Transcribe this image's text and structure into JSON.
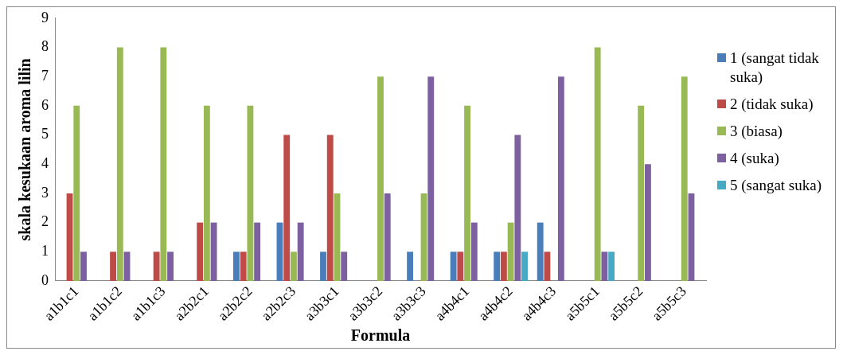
{
  "chart_data": {
    "type": "bar",
    "xlabel": "Formula",
    "ylabel": "skala kesukaan aroma lilin",
    "categories": [
      "a1b1c1",
      "a1b1c2",
      "a1b1c3",
      "a2b2c1",
      "a2b2c2",
      "a2b2c3",
      "a3b3c1",
      "a3b3c2",
      "a3b3c3",
      "a4b4c1",
      "a4b4c2",
      "a4b4c3",
      "a5b5c1",
      "a5b5c2",
      "a5b5c3"
    ],
    "series": [
      {
        "name": "1 (sangat tidak suka)",
        "color": "#4a7ebb",
        "values": [
          0,
          0,
          0,
          0,
          1,
          2,
          1,
          0,
          1,
          1,
          1,
          2,
          0,
          0,
          0
        ]
      },
      {
        "name": "2 (tidak suka)",
        "color": "#be4b48",
        "values": [
          3,
          1,
          1,
          2,
          1,
          5,
          5,
          0,
          0,
          1,
          1,
          1,
          0,
          0,
          0
        ]
      },
      {
        "name": "3 (biasa)",
        "color": "#98b954",
        "values": [
          6,
          8,
          8,
          6,
          6,
          1,
          3,
          7,
          3,
          6,
          2,
          0,
          8,
          6,
          7
        ]
      },
      {
        "name": "4 (suka)",
        "color": "#7d60a0",
        "values": [
          1,
          1,
          1,
          2,
          2,
          2,
          1,
          3,
          7,
          2,
          5,
          7,
          1,
          4,
          3
        ]
      },
      {
        "name": "5 (sangat suka)",
        "color": "#46aac5",
        "values": [
          0,
          0,
          0,
          0,
          0,
          0,
          0,
          0,
          0,
          0,
          1,
          0,
          1,
          0,
          0
        ]
      }
    ],
    "ylim": [
      0,
      9
    ],
    "yticks": [
      0,
      1,
      2,
      3,
      4,
      5,
      6,
      7,
      8,
      9
    ],
    "grid": false,
    "legend": "right"
  }
}
